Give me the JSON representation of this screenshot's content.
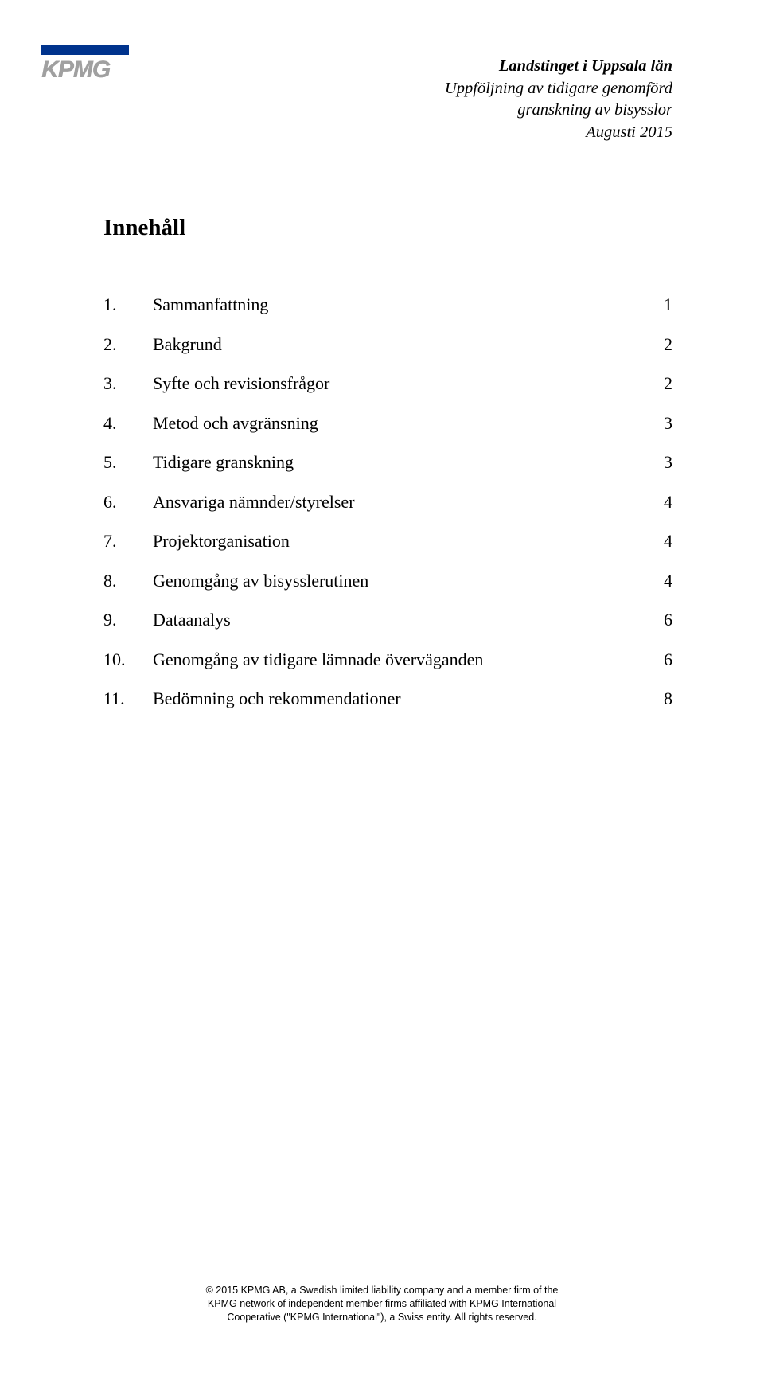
{
  "logo": {
    "text": "KPMG",
    "bar_color": "#00338d",
    "text_color": "#a0a0a0"
  },
  "header": {
    "line1": "Landstinget i Uppsala län",
    "line2": "Uppföljning av tidigare genomförd",
    "line3": "granskning av bisysslor",
    "line4": "Augusti 2015"
  },
  "title": "Innehåll",
  "toc": [
    {
      "num": "1.",
      "label": "Sammanfattning",
      "page": "1"
    },
    {
      "num": "2.",
      "label": "Bakgrund",
      "page": "2"
    },
    {
      "num": "3.",
      "label": "Syfte och revisionsfrågor",
      "page": "2"
    },
    {
      "num": "4.",
      "label": "Metod och avgränsning",
      "page": "3"
    },
    {
      "num": "5.",
      "label": "Tidigare granskning",
      "page": "3"
    },
    {
      "num": "6.",
      "label": "Ansvariga nämnder/styrelser",
      "page": "4"
    },
    {
      "num": "7.",
      "label": "Projektorganisation",
      "page": "4"
    },
    {
      "num": "8.",
      "label": "Genomgång av bisysslerutinen",
      "page": "4"
    },
    {
      "num": "9.",
      "label": "Dataanalys",
      "page": "6"
    },
    {
      "num": "10.",
      "label": "Genomgång av tidigare lämnade överväganden",
      "page": "6"
    },
    {
      "num": "11.",
      "label": "Bedömning och rekommendationer",
      "page": "8"
    }
  ],
  "footer": {
    "line1": "© 2015 KPMG AB, a Swedish limited liability company and a member firm of the",
    "line2": "KPMG network of independent member firms affiliated with KPMG International",
    "line3": "Cooperative (\"KPMG International\"), a Swiss entity. All rights reserved."
  },
  "style": {
    "page_bg": "#ffffff",
    "body_font": "Times New Roman",
    "footer_font": "Arial",
    "title_fontsize": 29,
    "toc_fontsize": 22,
    "header_fontsize": 20.5,
    "footer_fontsize": 12.5,
    "text_color": "#000000"
  }
}
